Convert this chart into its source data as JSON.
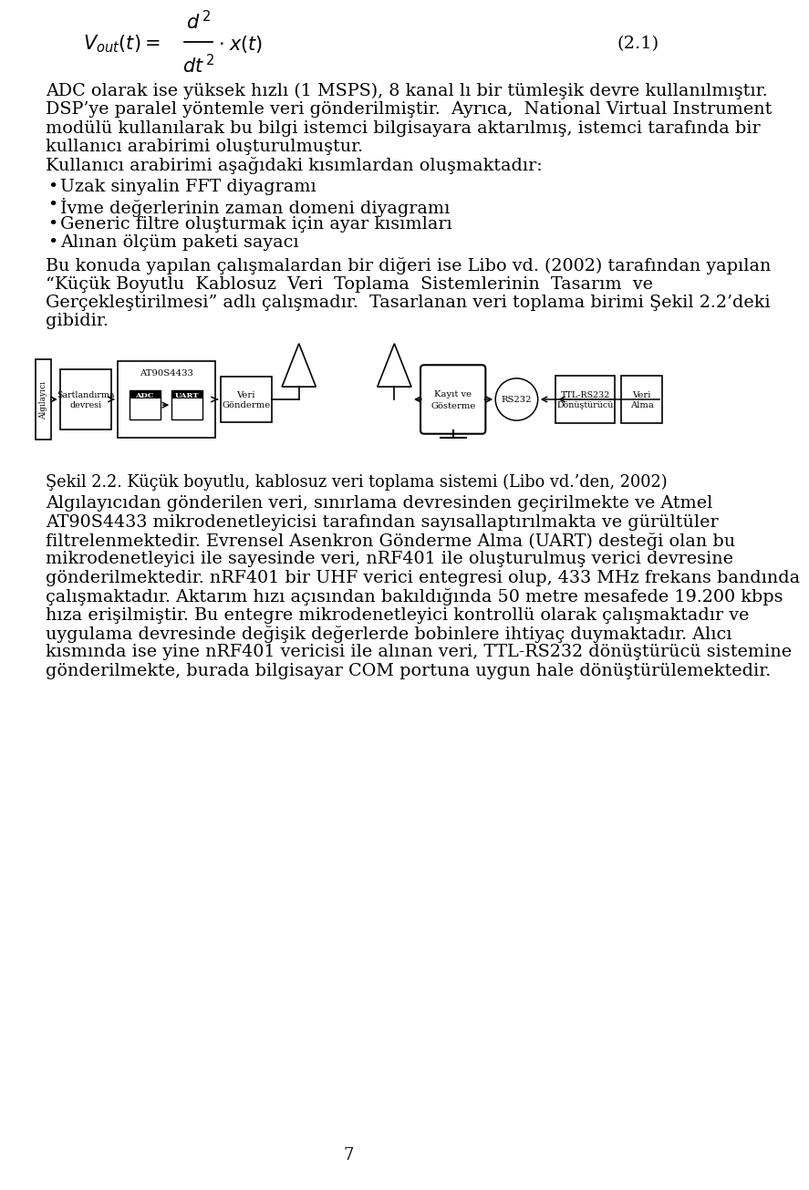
{
  "bg_color": "#ffffff",
  "text_color": "#000000",
  "equation_number": "(2.1)",
  "para1": "ADC olarak ise yuksek hizli (1 MSPS), 8 kanalli bir tumlesik devre kullanilmistir.",
  "para1_display": "ADC olarak ise yüksek hızlı (1 MSPS), 8 kanal lı bir tümleşik devre kullanılmıştır.",
  "para2_line1": "DSP’ye paralel yöntemle veri gönderilmiştir.  Ayrıca,  National Virtual Instrument",
  "para2_line2": "modülü kullanılarak bu bilgi istemci bilgisayara aktarılmış, istemci tarafında bir",
  "para2_line3": "kullanıcı arabirimi oluşturulmuştur.",
  "para3": "Kullanıcı arabirimi aşağıdaki kısımlardan oluşmaktadır:",
  "bullet1": "Uzak sinyalin FFT diyagramı",
  "bullet2": "İvme değerlerinin zaman domeni diyagramı",
  "bullet3": "Generic filtre oluşturmak için ayar kısımları",
  "bullet4": "Alınan ölçüm paketi sayacı",
  "after_bullets_line1": "Bu konuda yapılan çalışmalardan bir diğeri ise Libo vd. (2002) tarafından yapılan",
  "after_bullets_line2": "“Küçük Boyutlu Kablosuz Veri Toplama Sistemlerinin Tasarım ve",
  "after_bullets_line3": "Gerçekleştirilmesi” adlı çalışmadır. Tasarlanan veri toplama birimi Şekil 2.2’deki",
  "after_bullets_line4": "gibidir.",
  "fig_caption": "Şekil 2.2. Küçük boyutlu, kablosuz veri toplama sistemi (Libo vd.’den, 2002)",
  "fp1_line1": "Algılayıcıdan gönderilen veri, sınırlama devresinden geçirilmekte ve Atmel",
  "fp1_line2": "AT90S4433 mikrodenetleyicisi tarafından sayısallaptırılmakta ve gürültüler",
  "fp1_line3": "filtrelenmektedir. Evrensel Asenkron Gönderme Alma (UART) desteği olan bu",
  "fp1_line4": "mikrodenetleyici ile sayesinde veri, nRF401 ile oluşturulmuş verici devresine",
  "fp1_line5": "gönderilmektedir. nRF401 bir UHF verici entegresi olup, 433 MHz frekans bandında",
  "fp1_line6": "çalışmaktadır. Aktarım hızı açısından bakıldığında 50 metre mesafede 19.200 kbps",
  "fp1_line7": "hıza erişilmiştir. Bu entegre mikrodenetleyici kontrollü olarak çalışmaktadır ve",
  "fp1_line8": "uygulama devresinde değişik değerlerde bobinlere ihtiyaç duymaktadır. Alıcı",
  "fp1_line9": "kısmında ise yine nRF401 vericisi ile alınan veri, TTL-RS232 dönüştürücü sistemine",
  "fp1_line10": "gönderilmekte, burada bilgisayar COM portuna uygun hale dönüştürülemektedir.",
  "page_number": "7",
  "lmargin": 52,
  "rmargin": 920,
  "fs": 13.8,
  "ls": 26.5
}
